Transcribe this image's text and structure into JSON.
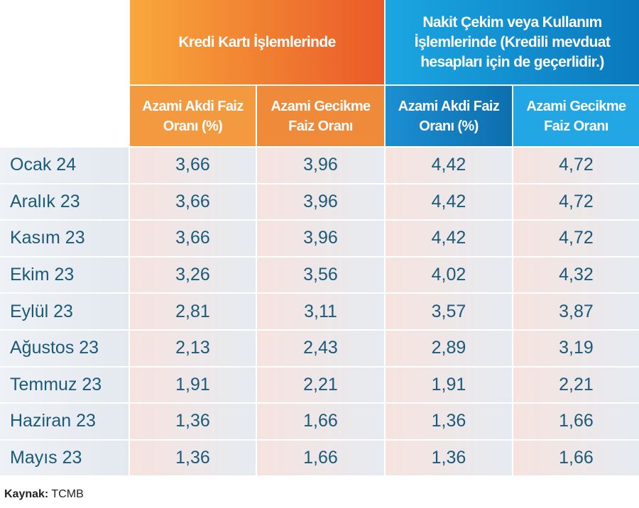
{
  "table": {
    "group_headers": [
      "Kredi Kartı İşlemlerinde",
      "Nakit Çekim veya Kullanım İşlemlerinde (Kredili mevduat hesapları için de geçerlidir.)"
    ],
    "column_headers": [
      "Azami Akdi Faiz Oranı (%)",
      "Azami Gecikme Faiz Oranı",
      "Azami Akdi Faiz Oranı (%)",
      "Azami Gecikme Faiz Oranı"
    ],
    "rows": [
      [
        "Ocak 24",
        "3,66",
        "3,96",
        "4,42",
        "4,72"
      ],
      [
        "Aralık 23",
        "3,66",
        "3,96",
        "4,42",
        "4,72"
      ],
      [
        "Kasım 23",
        "3,66",
        "3,96",
        "4,42",
        "4,72"
      ],
      [
        "Ekim 23",
        "3,26",
        "3,56",
        "4,02",
        "4,32"
      ],
      [
        "Eylül 23",
        "2,81",
        "3,11",
        "3,57",
        "3,87"
      ],
      [
        "Ağustos 23",
        "2,13",
        "2,43",
        "2,89",
        "3,19"
      ],
      [
        "Temmuz 23",
        "1,91",
        "2,21",
        "1,91",
        "2,21"
      ],
      [
        "Haziran 23",
        "1,36",
        "1,66",
        "1,36",
        "1,66"
      ],
      [
        "Mayıs 23",
        "1,36",
        "1,66",
        "1,36",
        "1,66"
      ]
    ]
  },
  "source": {
    "label": "Kaynak:",
    "text": "TCMB"
  }
}
